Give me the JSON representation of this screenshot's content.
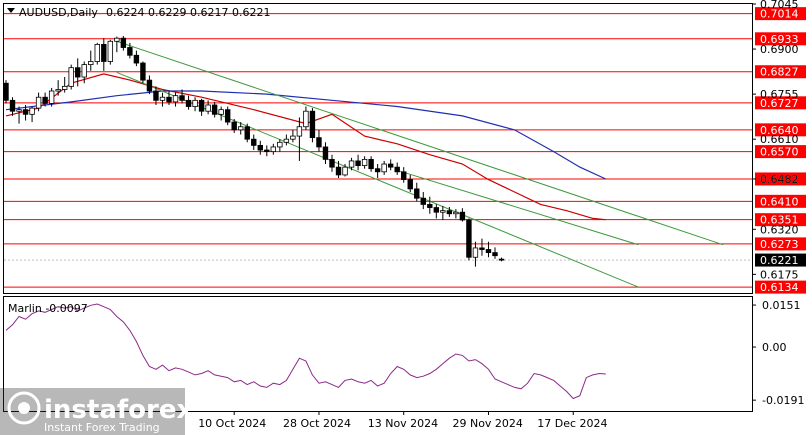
{
  "header": {
    "symbol": "AUDUSD,Daily",
    "ohlc": "0.6224 0.6229 0.6217 0.6221"
  },
  "chart_data": [
    {
      "type": "candlestick",
      "title": "AUDUSD,Daily",
      "ylim": [
        0.6115,
        0.7045
      ],
      "price_ticks": [
        "0.7045",
        "0.6900",
        "0.6755",
        "0.6610",
        "0.6482",
        "0.6320",
        "0.6175"
      ],
      "x_labels": [
        "10 Oct 2024",
        "28 Oct 2024",
        "13 Nov 2024",
        "29 Nov 2024",
        "17 Dec 2024"
      ],
      "x_label_index": [
        35,
        48,
        61,
        74,
        87
      ],
      "current_price": "0.6221",
      "levels": [
        "0.7014",
        "0.6933",
        "0.6827",
        "0.6727",
        "0.6640",
        "0.6570",
        "0.6482",
        "0.6410",
        "0.6351",
        "0.6273",
        "0.6134"
      ],
      "level_color": "#ff0000",
      "highlight_level_color": "#000000",
      "candles": [
        {
          "o": 0.679,
          "h": 0.68,
          "l": 0.6725,
          "c": 0.6735
        },
        {
          "o": 0.6735,
          "h": 0.6745,
          "l": 0.6685,
          "c": 0.67
        },
        {
          "o": 0.67,
          "h": 0.6715,
          "l": 0.666,
          "c": 0.6705
        },
        {
          "o": 0.6705,
          "h": 0.672,
          "l": 0.667,
          "c": 0.669
        },
        {
          "o": 0.669,
          "h": 0.6715,
          "l": 0.6665,
          "c": 0.671
        },
        {
          "o": 0.671,
          "h": 0.676,
          "l": 0.67,
          "c": 0.6745
        },
        {
          "o": 0.6745,
          "h": 0.676,
          "l": 0.6715,
          "c": 0.6725
        },
        {
          "o": 0.6725,
          "h": 0.6775,
          "l": 0.6715,
          "c": 0.6765
        },
        {
          "o": 0.6765,
          "h": 0.68,
          "l": 0.675,
          "c": 0.677
        },
        {
          "o": 0.677,
          "h": 0.681,
          "l": 0.676,
          "c": 0.678
        },
        {
          "o": 0.678,
          "h": 0.685,
          "l": 0.677,
          "c": 0.684
        },
        {
          "o": 0.684,
          "h": 0.687,
          "l": 0.678,
          "c": 0.681
        },
        {
          "o": 0.681,
          "h": 0.686,
          "l": 0.679,
          "c": 0.685
        },
        {
          "o": 0.685,
          "h": 0.6895,
          "l": 0.683,
          "c": 0.686
        },
        {
          "o": 0.686,
          "h": 0.692,
          "l": 0.685,
          "c": 0.6915
        },
        {
          "o": 0.6915,
          "h": 0.6935,
          "l": 0.683,
          "c": 0.686
        },
        {
          "o": 0.686,
          "h": 0.693,
          "l": 0.685,
          "c": 0.6925
        },
        {
          "o": 0.6925,
          "h": 0.694,
          "l": 0.689,
          "c": 0.6935
        },
        {
          "o": 0.6935,
          "h": 0.6942,
          "l": 0.6895,
          "c": 0.6905
        },
        {
          "o": 0.6905,
          "h": 0.692,
          "l": 0.687,
          "c": 0.688
        },
        {
          "o": 0.688,
          "h": 0.6895,
          "l": 0.6845,
          "c": 0.6855
        },
        {
          "o": 0.6855,
          "h": 0.686,
          "l": 0.679,
          "c": 0.68
        },
        {
          "o": 0.68,
          "h": 0.6815,
          "l": 0.6755,
          "c": 0.6765
        },
        {
          "o": 0.6765,
          "h": 0.678,
          "l": 0.672,
          "c": 0.6735
        },
        {
          "o": 0.6735,
          "h": 0.676,
          "l": 0.6715,
          "c": 0.6745
        },
        {
          "o": 0.6745,
          "h": 0.6765,
          "l": 0.672,
          "c": 0.673
        },
        {
          "o": 0.673,
          "h": 0.676,
          "l": 0.6715,
          "c": 0.675
        },
        {
          "o": 0.675,
          "h": 0.677,
          "l": 0.6725,
          "c": 0.6735
        },
        {
          "o": 0.6735,
          "h": 0.675,
          "l": 0.6705,
          "c": 0.6715
        },
        {
          "o": 0.6715,
          "h": 0.6745,
          "l": 0.67,
          "c": 0.6735
        },
        {
          "o": 0.6735,
          "h": 0.674,
          "l": 0.6685,
          "c": 0.67
        },
        {
          "o": 0.67,
          "h": 0.6735,
          "l": 0.669,
          "c": 0.672
        },
        {
          "o": 0.672,
          "h": 0.673,
          "l": 0.668,
          "c": 0.669
        },
        {
          "o": 0.669,
          "h": 0.6715,
          "l": 0.667,
          "c": 0.6705
        },
        {
          "o": 0.6705,
          "h": 0.6715,
          "l": 0.6655,
          "c": 0.6665
        },
        {
          "o": 0.6665,
          "h": 0.6675,
          "l": 0.663,
          "c": 0.664
        },
        {
          "o": 0.664,
          "h": 0.6665,
          "l": 0.6625,
          "c": 0.665
        },
        {
          "o": 0.665,
          "h": 0.666,
          "l": 0.66,
          "c": 0.661
        },
        {
          "o": 0.661,
          "h": 0.6625,
          "l": 0.6575,
          "c": 0.659
        },
        {
          "o": 0.659,
          "h": 0.6605,
          "l": 0.656,
          "c": 0.6575
        },
        {
          "o": 0.6575,
          "h": 0.659,
          "l": 0.6555,
          "c": 0.657
        },
        {
          "o": 0.657,
          "h": 0.6595,
          "l": 0.656,
          "c": 0.6585
        },
        {
          "o": 0.6585,
          "h": 0.661,
          "l": 0.657,
          "c": 0.66
        },
        {
          "o": 0.66,
          "h": 0.6625,
          "l": 0.659,
          "c": 0.661
        },
        {
          "o": 0.661,
          "h": 0.664,
          "l": 0.66,
          "c": 0.662
        },
        {
          "o": 0.662,
          "h": 0.668,
          "l": 0.654,
          "c": 0.665
        },
        {
          "o": 0.665,
          "h": 0.6715,
          "l": 0.664,
          "c": 0.67
        },
        {
          "o": 0.67,
          "h": 0.671,
          "l": 0.66,
          "c": 0.6615
        },
        {
          "o": 0.6615,
          "h": 0.664,
          "l": 0.657,
          "c": 0.6585
        },
        {
          "o": 0.6585,
          "h": 0.66,
          "l": 0.653,
          "c": 0.6545
        },
        {
          "o": 0.6545,
          "h": 0.656,
          "l": 0.6505,
          "c": 0.652
        },
        {
          "o": 0.652,
          "h": 0.654,
          "l": 0.6485,
          "c": 0.6495
        },
        {
          "o": 0.6495,
          "h": 0.653,
          "l": 0.649,
          "c": 0.652
        },
        {
          "o": 0.652,
          "h": 0.655,
          "l": 0.651,
          "c": 0.654
        },
        {
          "o": 0.654,
          "h": 0.656,
          "l": 0.651,
          "c": 0.6525
        },
        {
          "o": 0.6525,
          "h": 0.6555,
          "l": 0.6515,
          "c": 0.6545
        },
        {
          "o": 0.6545,
          "h": 0.6555,
          "l": 0.6505,
          "c": 0.6515
        },
        {
          "o": 0.6515,
          "h": 0.653,
          "l": 0.6485,
          "c": 0.6505
        },
        {
          "o": 0.6505,
          "h": 0.654,
          "l": 0.6495,
          "c": 0.653
        },
        {
          "o": 0.653,
          "h": 0.6545,
          "l": 0.651,
          "c": 0.652
        },
        {
          "o": 0.652,
          "h": 0.6535,
          "l": 0.6495,
          "c": 0.6505
        },
        {
          "o": 0.6505,
          "h": 0.652,
          "l": 0.647,
          "c": 0.648
        },
        {
          "o": 0.648,
          "h": 0.6495,
          "l": 0.644,
          "c": 0.645
        },
        {
          "o": 0.645,
          "h": 0.647,
          "l": 0.641,
          "c": 0.642
        },
        {
          "o": 0.642,
          "h": 0.644,
          "l": 0.6385,
          "c": 0.64
        },
        {
          "o": 0.64,
          "h": 0.6425,
          "l": 0.637,
          "c": 0.639
        },
        {
          "o": 0.639,
          "h": 0.64,
          "l": 0.6355,
          "c": 0.6375
        },
        {
          "o": 0.6375,
          "h": 0.6395,
          "l": 0.635,
          "c": 0.638
        },
        {
          "o": 0.638,
          "h": 0.6392,
          "l": 0.636,
          "c": 0.637
        },
        {
          "o": 0.637,
          "h": 0.6385,
          "l": 0.6355,
          "c": 0.6375
        },
        {
          "o": 0.6375,
          "h": 0.6388,
          "l": 0.6345,
          "c": 0.635
        },
        {
          "o": 0.635,
          "h": 0.6355,
          "l": 0.622,
          "c": 0.623
        },
        {
          "o": 0.623,
          "h": 0.628,
          "l": 0.62,
          "c": 0.626
        },
        {
          "o": 0.626,
          "h": 0.629,
          "l": 0.6235,
          "c": 0.6255
        },
        {
          "o": 0.6255,
          "h": 0.628,
          "l": 0.623,
          "c": 0.6245
        },
        {
          "o": 0.6245,
          "h": 0.6262,
          "l": 0.6225,
          "c": 0.6235
        },
        {
          "o": 0.6224,
          "h": 0.6229,
          "l": 0.6217,
          "c": 0.6221
        }
      ],
      "overlays": [
        {
          "name": "red-ma",
          "color": "#cc0000",
          "points": [
            [
              0,
              0.6685
            ],
            [
              5,
              0.671
            ],
            [
              10,
              0.679
            ],
            [
              15,
              0.682
            ],
            [
              19,
              0.68
            ],
            [
              24,
              0.677
            ],
            [
              30,
              0.6745
            ],
            [
              38,
              0.6705
            ],
            [
              46,
              0.666
            ],
            [
              50,
              0.669
            ],
            [
              55,
              0.662
            ],
            [
              60,
              0.6595
            ],
            [
              65,
              0.656
            ],
            [
              70,
              0.653
            ],
            [
              74,
              0.648
            ],
            [
              78,
              0.644
            ],
            [
              82,
              0.64
            ],
            [
              86,
              0.638
            ],
            [
              90,
              0.6355
            ],
            [
              92,
              0.6351
            ]
          ]
        },
        {
          "name": "blue-ma",
          "color": "#1f2fb0",
          "points": [
            [
              0,
              0.6705
            ],
            [
              10,
              0.673
            ],
            [
              17,
              0.675
            ],
            [
              24,
              0.6765
            ],
            [
              30,
              0.6765
            ],
            [
              40,
              0.6755
            ],
            [
              50,
              0.6735
            ],
            [
              60,
              0.6715
            ],
            [
              70,
              0.6685
            ],
            [
              78,
              0.664
            ],
            [
              84,
              0.657
            ],
            [
              88,
              0.652
            ],
            [
              92,
              0.6482
            ]
          ]
        },
        {
          "name": "channel-upper",
          "color": "#3d9a3d",
          "points": [
            [
              17,
              0.6925
            ],
            [
              110,
              0.627
            ]
          ]
        },
        {
          "name": "channel-lower",
          "color": "#3d9a3d",
          "points": [
            [
              17,
              0.6825
            ],
            [
              97,
              0.6134
            ]
          ]
        },
        {
          "name": "channel-mid",
          "color": "#3d9a3d",
          "points": [
            [
              60,
              0.651
            ],
            [
              97,
              0.627
            ]
          ]
        }
      ]
    },
    {
      "type": "line",
      "title": "Marlin -0.0097",
      "ylim": [
        -0.023,
        0.018
      ],
      "y_ticks": [
        "0.0151",
        "0.00",
        "-0.0191"
      ],
      "series": [
        {
          "name": "Marlin",
          "color": "#8a2a8a",
          "values": [
            0.006,
            0.008,
            0.011,
            0.01,
            0.012,
            0.013,
            0.0125,
            0.0135,
            0.0145,
            0.014,
            0.0145,
            0.013,
            0.014,
            0.015,
            0.0155,
            0.0145,
            0.0135,
            0.011,
            0.009,
            0.006,
            0.002,
            -0.003,
            -0.007,
            -0.008,
            -0.0065,
            -0.0085,
            -0.0075,
            -0.008,
            -0.009,
            -0.01,
            -0.0095,
            -0.0085,
            -0.01,
            -0.0105,
            -0.011,
            -0.0125,
            -0.012,
            -0.0135,
            -0.0125,
            -0.014,
            -0.0145,
            -0.013,
            -0.0135,
            -0.012,
            -0.008,
            -0.004,
            -0.005,
            -0.01,
            -0.013,
            -0.0125,
            -0.0135,
            -0.0145,
            -0.012,
            -0.0115,
            -0.0125,
            -0.013,
            -0.012,
            -0.014,
            -0.013,
            -0.0095,
            -0.007,
            -0.008,
            -0.01,
            -0.011,
            -0.0105,
            -0.0095,
            -0.008,
            -0.006,
            -0.004,
            -0.0025,
            -0.003,
            -0.005,
            -0.0045,
            -0.006,
            -0.008,
            -0.0115,
            -0.0125,
            -0.0135,
            -0.0145,
            -0.015,
            -0.013,
            -0.0095,
            -0.01,
            -0.011,
            -0.012,
            -0.014,
            -0.016,
            -0.0185,
            -0.0175,
            -0.011,
            -0.01,
            -0.0095,
            -0.0097
          ]
        }
      ]
    }
  ],
  "watermark": {
    "brand": "instaforex",
    "tagline": "Instant Forex Trading"
  }
}
